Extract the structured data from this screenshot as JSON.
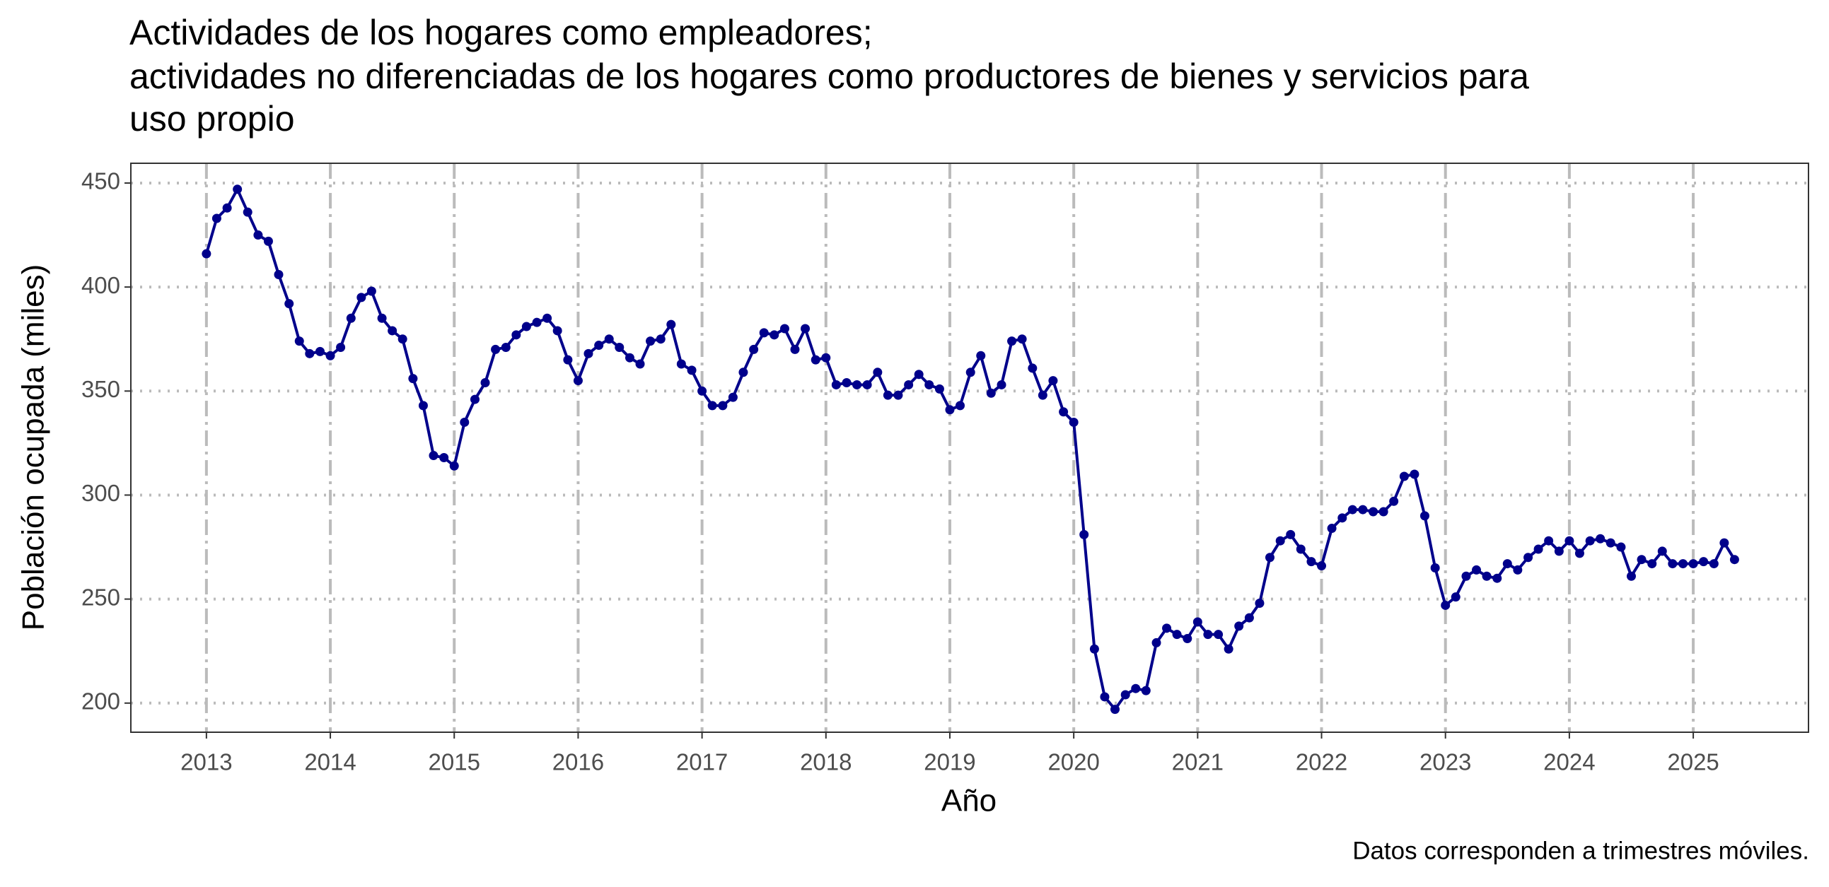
{
  "chart_data": {
    "type": "line",
    "title": [
      "Actividades de los hogares como empleadores;",
      "actividades no diferenciadas de los hogares como productores de bienes y servicios para",
      "uso propio"
    ],
    "x_label": "Año",
    "y_label": "Población ocupada (miles)",
    "caption": "Datos corresponden a trimestres móviles.",
    "xlim": [
      2012.39,
      2025.93
    ],
    "ylim": [
      186,
      459.5
    ],
    "xticks": [
      2013,
      2014,
      2015,
      2016,
      2017,
      2018,
      2019,
      2020,
      2021,
      2022,
      2023,
      2024,
      2025
    ],
    "yticks": [
      200,
      250,
      300,
      350,
      400,
      450
    ],
    "grid": true,
    "x": [
      2013,
      2013.083,
      2013.167,
      2013.25,
      2013.333,
      2013.417,
      2013.5,
      2013.583,
      2013.667,
      2013.75,
      2013.833,
      2013.917,
      2014,
      2014.083,
      2014.167,
      2014.25,
      2014.333,
      2014.417,
      2014.5,
      2014.583,
      2014.667,
      2014.75,
      2014.833,
      2014.917,
      2015,
      2015.083,
      2015.167,
      2015.25,
      2015.333,
      2015.417,
      2015.5,
      2015.583,
      2015.667,
      2015.75,
      2015.833,
      2015.917,
      2016,
      2016.083,
      2016.167,
      2016.25,
      2016.333,
      2016.417,
      2016.5,
      2016.583,
      2016.667,
      2016.75,
      2016.833,
      2016.917,
      2017,
      2017.083,
      2017.167,
      2017.25,
      2017.333,
      2017.417,
      2017.5,
      2017.583,
      2017.667,
      2017.75,
      2017.833,
      2017.917,
      2018,
      2018.083,
      2018.167,
      2018.25,
      2018.333,
      2018.417,
      2018.5,
      2018.583,
      2018.667,
      2018.75,
      2018.833,
      2018.917,
      2019,
      2019.083,
      2019.167,
      2019.25,
      2019.333,
      2019.417,
      2019.5,
      2019.583,
      2019.667,
      2019.75,
      2019.833,
      2019.917,
      2020,
      2020.083,
      2020.167,
      2020.25,
      2020.333,
      2020.417,
      2020.5,
      2020.583,
      2020.667,
      2020.75,
      2020.833,
      2020.917,
      2021,
      2021.083,
      2021.167,
      2021.25,
      2021.333,
      2021.417,
      2021.5,
      2021.583,
      2021.667,
      2021.75,
      2021.833,
      2021.917,
      2022,
      2022.083,
      2022.167,
      2022.25,
      2022.333,
      2022.417,
      2022.5,
      2022.583,
      2022.667,
      2022.75,
      2022.833,
      2022.917,
      2023,
      2023.083,
      2023.167,
      2023.25,
      2023.333,
      2023.417,
      2023.5,
      2023.583,
      2023.667,
      2023.75,
      2023.833,
      2023.917,
      2024,
      2024.083,
      2024.167,
      2024.25,
      2024.333,
      2024.417,
      2024.5,
      2024.583,
      2024.667,
      2024.75,
      2024.833,
      2024.917,
      2025,
      2025.083,
      2025.167,
      2025.25,
      2025.333
    ],
    "series": [
      {
        "name": "Población ocupada",
        "color": "#00008b",
        "values": [
          416,
          433,
          438,
          447,
          436,
          425,
          422,
          406,
          392,
          374,
          368,
          369,
          367,
          371,
          385,
          395,
          398,
          385,
          379,
          375,
          356,
          343,
          319,
          318,
          314,
          335,
          346,
          354,
          370,
          371,
          377,
          381,
          383,
          385,
          379,
          365,
          355,
          368,
          372,
          375,
          371,
          366,
          363,
          374,
          375,
          382,
          363,
          360,
          350,
          343,
          343,
          347,
          359,
          370,
          378,
          377,
          380,
          370,
          380,
          365,
          366,
          353,
          354,
          353,
          353,
          359,
          348,
          348,
          353,
          358,
          353,
          351,
          341,
          343,
          359,
          367,
          349,
          353,
          374,
          375,
          361,
          348,
          355,
          340,
          335,
          281,
          226,
          203,
          197,
          204,
          207,
          206,
          229,
          236,
          233,
          231,
          239,
          233,
          233,
          226,
          237,
          241,
          248,
          270,
          278,
          281,
          274,
          268,
          266,
          284,
          289,
          293,
          293,
          292,
          292,
          297,
          309,
          310,
          290,
          265,
          247,
          251,
          261,
          264,
          261,
          260,
          267,
          264,
          270,
          274,
          278,
          273,
          278,
          272,
          278,
          279,
          277,
          275,
          261,
          269,
          267,
          273,
          267,
          267,
          267,
          268,
          267,
          277,
          269
        ]
      }
    ]
  }
}
